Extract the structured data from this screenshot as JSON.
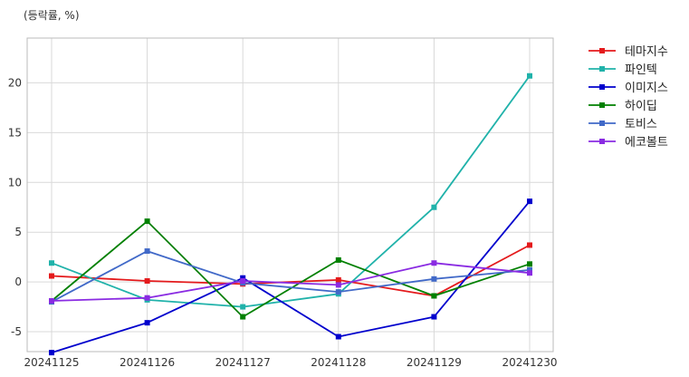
{
  "chart_data": {
    "type": "line",
    "title": "",
    "unit_label": "(등락률, %)",
    "xlabel": "",
    "ylabel": "",
    "categories": [
      "20241125",
      "20241126",
      "20241127",
      "20241128",
      "20241129",
      "20241230"
    ],
    "ylim": [
      -7,
      24.5
    ],
    "yticks": [
      -5,
      0,
      5,
      10,
      15,
      20
    ],
    "grid": true,
    "legend_position": "outside-top-right",
    "series": [
      {
        "name": "테마지수",
        "color": "#e41a1c",
        "values": [
          0.6,
          0.1,
          -0.2,
          0.2,
          -1.4,
          3.7
        ]
      },
      {
        "name": "파인텍",
        "color": "#20b2aa",
        "values": [
          1.9,
          -1.8,
          -2.5,
          -1.2,
          7.5,
          20.7
        ]
      },
      {
        "name": "이미지스",
        "color": "#0000cd",
        "values": [
          -7.1,
          -4.1,
          0.4,
          -5.5,
          -3.5,
          8.1
        ]
      },
      {
        "name": "하이딥",
        "color": "#008000",
        "values": [
          -1.9,
          6.1,
          -3.5,
          2.2,
          -1.4,
          1.8
        ]
      },
      {
        "name": "토비스",
        "color": "#4169c8",
        "values": [
          -2.0,
          3.1,
          -0.1,
          -1.0,
          0.3,
          1.2
        ]
      },
      {
        "name": "에코볼트",
        "color": "#8a2be2",
        "values": [
          -1.9,
          -1.6,
          0.1,
          -0.3,
          1.9,
          0.9
        ]
      }
    ]
  }
}
